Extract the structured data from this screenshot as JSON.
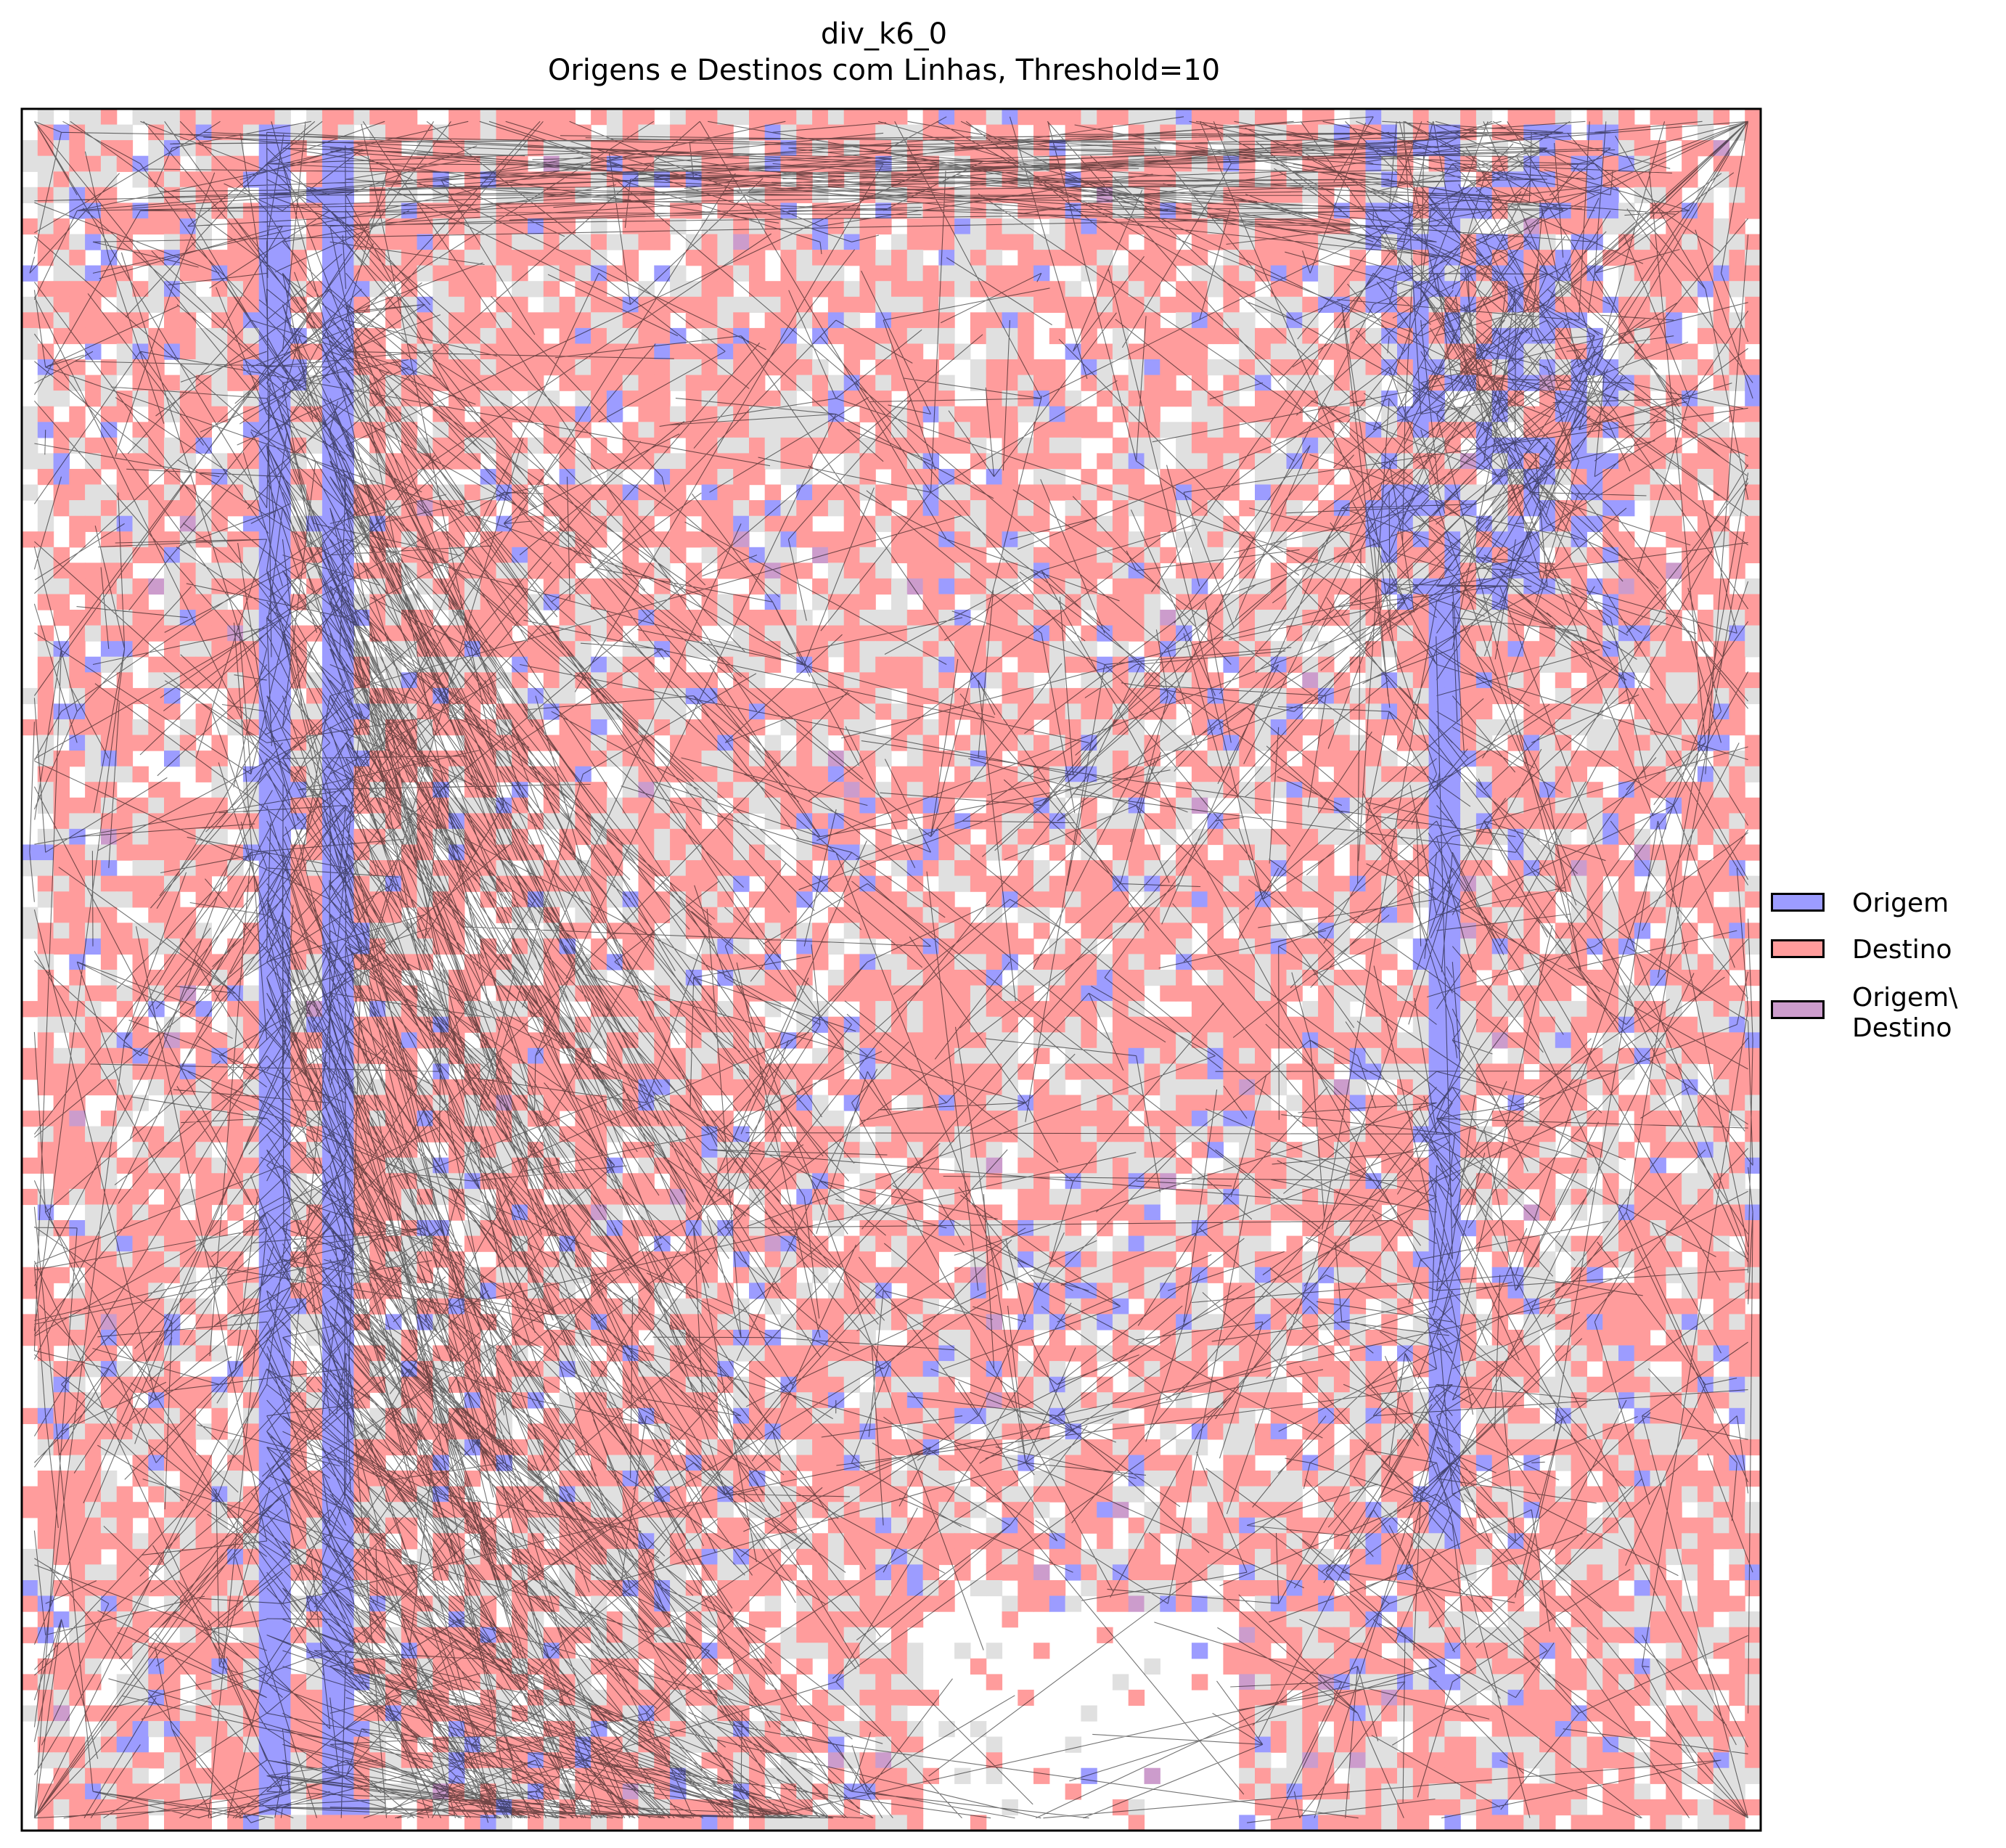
{
  "chart_data": {
    "type": "heatmap",
    "title": "div_k6_0",
    "subtitle": "Origens e Destinos com Linhas, Threshold=10",
    "xlabel": "",
    "ylabel": "",
    "grid": false,
    "ticks": false,
    "grid_size": [
      110,
      110
    ],
    "legend_placement": "center-right outside",
    "legend": [
      {
        "name": "Origem",
        "color": "#9c9cff"
      },
      {
        "name": "Destino",
        "color": "#ff9c9c"
      },
      {
        "name": "Origem\\\nDestino",
        "color": "#cc9ccc"
      }
    ],
    "background_cell_color": "#e0e0e0",
    "line_color": "#000000",
    "origin_bands": [
      {
        "name": "left-vertical-1",
        "x": [
          15,
          16
        ],
        "y": [
          1,
          108
        ]
      },
      {
        "name": "left-vertical-2",
        "x": [
          19,
          20
        ],
        "y": [
          2,
          108
        ]
      },
      {
        "name": "right-vertical",
        "x": [
          89,
          90
        ],
        "y": [
          30,
          90
        ]
      },
      {
        "name": "top-right-block",
        "x": [
          85,
          100
        ],
        "y": [
          1,
          30
        ]
      }
    ],
    "empty_region": {
      "x": [
        57,
        76
      ],
      "y": [
        96,
        109
      ]
    }
  }
}
